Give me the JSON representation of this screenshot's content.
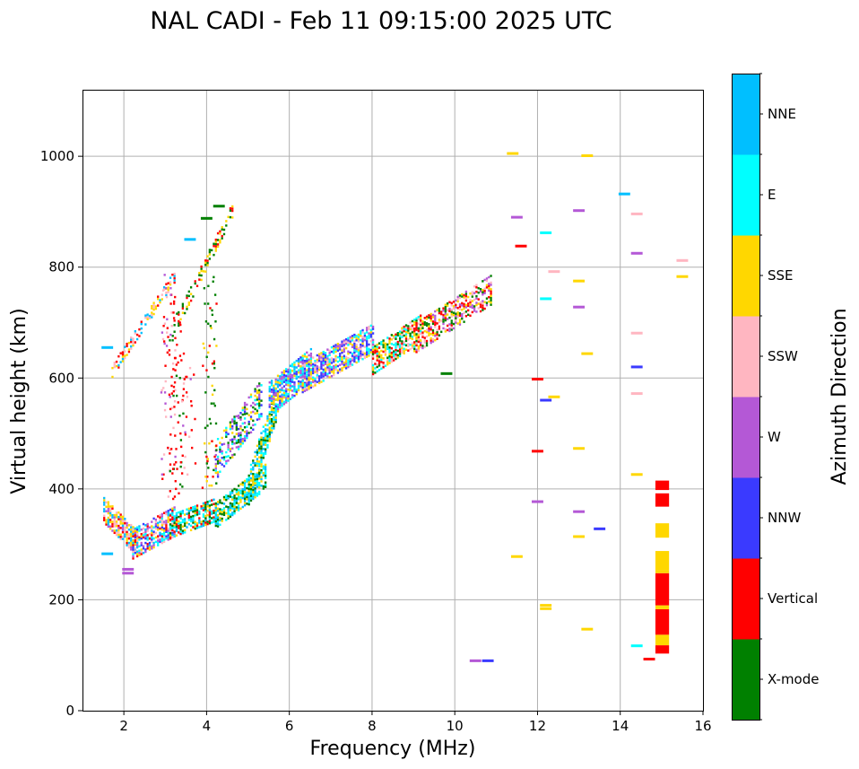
{
  "chart_data": {
    "type": "scatter",
    "title": "NAL CADI - Feb 11 09:15:00 2025 UTC",
    "xlabel": "Frequency (MHz)",
    "ylabel": "Virtual height (km)",
    "xlim": [
      1.0,
      16.0
    ],
    "ylim": [
      0,
      1120
    ],
    "xticks": [
      2,
      4,
      6,
      8,
      10,
      12,
      14,
      16
    ],
    "yticks": [
      0,
      200,
      400,
      600,
      800,
      1000
    ],
    "grid": true,
    "colorbar": {
      "title": "Azimuth Direction",
      "categories": [
        {
          "label": "X-mode",
          "color": "#008000"
        },
        {
          "label": "Vertical",
          "color": "#ff0000"
        },
        {
          "label": "NNW",
          "color": "#3a3aff"
        },
        {
          "label": "W",
          "color": "#b458d6"
        },
        {
          "label": "SSW",
          "color": "#ffb6c1"
        },
        {
          "label": "SSE",
          "color": "#ffd700"
        },
        {
          "label": "E",
          "color": "#00ffff"
        },
        {
          "label": "NNE",
          "color": "#00bfff"
        }
      ]
    },
    "regions": [
      {
        "name": "F-layer O-mode main trace (lower)",
        "x": [
          1.5,
          3.2
        ],
        "y": [
          300,
          400
        ],
        "colors": [
          "SSE",
          "SSW",
          "NNE",
          "Vertical",
          "W",
          "NNW"
        ]
      },
      {
        "name": "F-layer rising trace",
        "x": [
          3.0,
          5.7
        ],
        "y": [
          340,
          600
        ],
        "colors": [
          "E",
          "NNE",
          "X-mode",
          "SSE",
          "Vertical",
          "W"
        ]
      },
      {
        "name": "F-layer upper trace",
        "x": [
          5.7,
          8.5
        ],
        "y": [
          560,
          700
        ],
        "colors": [
          "NNW",
          "SSE",
          "W",
          "E",
          "SSW"
        ]
      },
      {
        "name": "High frequency trace",
        "x": [
          8.2,
          11.0
        ],
        "y": [
          600,
          800
        ],
        "colors": [
          "X-mode",
          "Vertical",
          "SSE",
          "SSW",
          "W"
        ]
      },
      {
        "name": "Multi-hop echo",
        "x": [
          1.7,
          4.6
        ],
        "y": [
          600,
          910
        ],
        "colors": [
          "Vertical",
          "SSW",
          "X-mode",
          "SSE"
        ]
      },
      {
        "name": "Vertical spread column",
        "x": [
          2.9,
          4.5
        ],
        "y": [
          380,
          790
        ],
        "colors": [
          "Vertical",
          "X-mode",
          "W"
        ]
      },
      {
        "name": "Interference column near 15 MHz",
        "x": [
          14.85,
          15.15
        ],
        "y": [
          100,
          415
        ],
        "colors": [
          "Vertical",
          "SSE"
        ]
      }
    ],
    "scattered_points": [
      {
        "x": 11.4,
        "y": 1005,
        "az": "SSE"
      },
      {
        "x": 13.2,
        "y": 1001,
        "az": "SSE"
      },
      {
        "x": 14.1,
        "y": 932,
        "az": "NNE"
      },
      {
        "x": 14.4,
        "y": 896,
        "az": "SSW"
      },
      {
        "x": 13.0,
        "y": 902,
        "az": "W"
      },
      {
        "x": 11.5,
        "y": 890,
        "az": "W"
      },
      {
        "x": 12.2,
        "y": 862,
        "az": "E"
      },
      {
        "x": 11.6,
        "y": 838,
        "az": "Vertical"
      },
      {
        "x": 14.4,
        "y": 825,
        "az": "W"
      },
      {
        "x": 15.5,
        "y": 812,
        "az": "SSW"
      },
      {
        "x": 15.5,
        "y": 783,
        "az": "SSE"
      },
      {
        "x": 12.4,
        "y": 792,
        "az": "SSW"
      },
      {
        "x": 13.0,
        "y": 775,
        "az": "SSE"
      },
      {
        "x": 12.2,
        "y": 743,
        "az": "E"
      },
      {
        "x": 13.0,
        "y": 728,
        "az": "W"
      },
      {
        "x": 14.4,
        "y": 681,
        "az": "SSW"
      },
      {
        "x": 13.2,
        "y": 644,
        "az": "SSE"
      },
      {
        "x": 14.4,
        "y": 620,
        "az": "NNW"
      },
      {
        "x": 12.0,
        "y": 598,
        "az": "Vertical"
      },
      {
        "x": 14.4,
        "y": 572,
        "az": "SSW"
      },
      {
        "x": 12.4,
        "y": 566,
        "az": "SSE"
      },
      {
        "x": 12.2,
        "y": 560,
        "az": "NNW"
      },
      {
        "x": 13.0,
        "y": 473,
        "az": "SSE"
      },
      {
        "x": 12.0,
        "y": 468,
        "az": "Vertical"
      },
      {
        "x": 14.4,
        "y": 426,
        "az": "SSE"
      },
      {
        "x": 12.0,
        "y": 377,
        "az": "W"
      },
      {
        "x": 13.0,
        "y": 359,
        "az": "W"
      },
      {
        "x": 13.5,
        "y": 328,
        "az": "NNW"
      },
      {
        "x": 13.0,
        "y": 314,
        "az": "SSE"
      },
      {
        "x": 11.5,
        "y": 278,
        "az": "SSE"
      },
      {
        "x": 12.2,
        "y": 190,
        "az": "SSE"
      },
      {
        "x": 12.2,
        "y": 184,
        "az": "SSE"
      },
      {
        "x": 13.2,
        "y": 147,
        "az": "SSE"
      },
      {
        "x": 14.4,
        "y": 117,
        "az": "E"
      },
      {
        "x": 14.7,
        "y": 93,
        "az": "Vertical"
      },
      {
        "x": 10.5,
        "y": 90,
        "az": "W"
      },
      {
        "x": 10.8,
        "y": 90,
        "az": "NNW"
      },
      {
        "x": 2.1,
        "y": 255,
        "az": "W"
      },
      {
        "x": 2.1,
        "y": 248,
        "az": "W"
      },
      {
        "x": 1.6,
        "y": 655,
        "az": "NNE"
      },
      {
        "x": 1.6,
        "y": 283,
        "az": "NNE"
      },
      {
        "x": 4.3,
        "y": 910,
        "az": "X-mode"
      },
      {
        "x": 4.0,
        "y": 888,
        "az": "X-mode"
      },
      {
        "x": 3.6,
        "y": 850,
        "az": "NNE"
      },
      {
        "x": 9.8,
        "y": 608,
        "az": "X-mode"
      }
    ]
  }
}
